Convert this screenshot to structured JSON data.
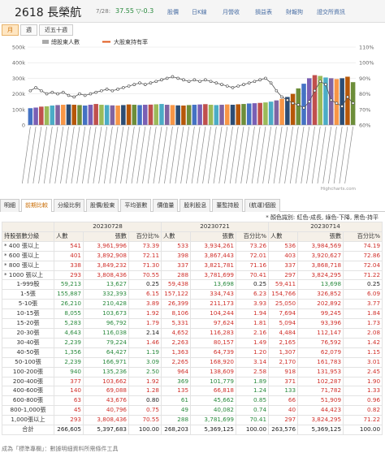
{
  "header": {
    "title": "2618 長榮航",
    "date": "7/28:",
    "price": "37.55 ▽-0.3",
    "nav": [
      "股價",
      "日K線",
      "月營收",
      "損益表",
      "財報狗",
      "證交所資訊"
    ]
  },
  "period_tabs": [
    "月",
    "週",
    "近五十週"
  ],
  "chart_data": {
    "type": "bar+line",
    "legend": [
      "總股東人數",
      "大股東持有率"
    ],
    "y_left": {
      "ticks": [
        "0",
        "100k",
        "200k",
        "300k",
        "400k",
        "500k"
      ],
      "min": 0,
      "max": 500000
    },
    "y_right": {
      "ticks": [
        "60%",
        "70%",
        "80%",
        "90%",
        "100%",
        "110%"
      ],
      "min": 60,
      "max": 110
    },
    "credit": "Highcharts.com",
    "holders_k": [
      108,
      112,
      118,
      120,
      125,
      128,
      130,
      132,
      130,
      128,
      125,
      130,
      135,
      130,
      128,
      126,
      125,
      128,
      132,
      130,
      128,
      130,
      131,
      133,
      135,
      130,
      128,
      126,
      125,
      128,
      130,
      132,
      134,
      130,
      128,
      130,
      132,
      130,
      133,
      135,
      138,
      140,
      142,
      145,
      150,
      158,
      168,
      180,
      200,
      235,
      265,
      300,
      320,
      315,
      305,
      300,
      295,
      300,
      310,
      275
    ],
    "top_holder_pct": [
      82,
      84,
      82,
      80,
      81,
      80,
      81,
      79,
      78,
      80,
      79,
      80,
      81,
      82,
      83,
      82,
      83,
      84,
      85,
      86,
      87,
      86,
      87,
      88,
      89,
      90,
      91,
      90,
      89,
      88,
      89,
      88,
      89,
      88,
      87,
      86,
      85,
      84,
      85,
      86,
      87,
      88,
      89,
      90,
      87,
      82,
      78,
      76,
      74,
      73,
      71,
      75,
      82,
      88,
      86,
      76,
      74,
      72,
      78,
      74
    ]
  },
  "section_tabs": [
    "明細",
    "前期比較",
    "分級比例",
    "股價/股東",
    "平均張數",
    "價值量",
    "股利股息",
    "董監持股",
    "(航運)個股"
  ],
  "color_note": "* 顏色識別: 紅色-成長, 綠色-下降, 黑色-持平",
  "table": {
    "col_label": "持股張數分級",
    "periods": [
      "20230728",
      "20230721",
      "20230714"
    ],
    "sub_headers": [
      "人數",
      "張數",
      "百分比%"
    ],
    "big_rows": [
      {
        "label": "* 400 張以上",
        "vals": [
          {
            "t": "541",
            "c": "red"
          },
          {
            "t": "3,961,996",
            "c": "red"
          },
          {
            "t": "73.39",
            "c": "red"
          },
          {
            "t": "533",
            "c": "red"
          },
          {
            "t": "3,934,261",
            "c": "red"
          },
          {
            "t": "73.26",
            "c": "red"
          },
          {
            "t": "536",
            "c": "red"
          },
          {
            "t": "3,984,569",
            "c": "red"
          },
          {
            "t": "74.19",
            "c": "red"
          }
        ]
      },
      {
        "label": "* 600 張以上",
        "vals": [
          {
            "t": "401",
            "c": "red"
          },
          {
            "t": "3,892,908",
            "c": "red"
          },
          {
            "t": "72.11",
            "c": "red"
          },
          {
            "t": "398",
            "c": "red"
          },
          {
            "t": "3,867,443",
            "c": "red"
          },
          {
            "t": "72.01",
            "c": "red"
          },
          {
            "t": "403",
            "c": "red"
          },
          {
            "t": "3,920,627",
            "c": "red"
          },
          {
            "t": "72.86",
            "c": "red"
          }
        ]
      },
      {
        "label": "* 800 張以上",
        "vals": [
          {
            "t": "338",
            "c": "red"
          },
          {
            "t": "3,849,232",
            "c": "red"
          },
          {
            "t": "71.30",
            "c": "red"
          },
          {
            "t": "337",
            "c": "red"
          },
          {
            "t": "3,821,781",
            "c": "red"
          },
          {
            "t": "71.16",
            "c": "red"
          },
          {
            "t": "337",
            "c": "red"
          },
          {
            "t": "3,868,718",
            "c": "red"
          },
          {
            "t": "72.04",
            "c": "red"
          }
        ]
      },
      {
        "label": "* 1000 張以上",
        "vals": [
          {
            "t": "293",
            "c": "red"
          },
          {
            "t": "3,808,436",
            "c": "red"
          },
          {
            "t": "70.55",
            "c": "red"
          },
          {
            "t": "288",
            "c": "red"
          },
          {
            "t": "3,781,699",
            "c": "red"
          },
          {
            "t": "70.41",
            "c": "red"
          },
          {
            "t": "297",
            "c": "red"
          },
          {
            "t": "3,824,295",
            "c": "red"
          },
          {
            "t": "71.22",
            "c": "red"
          }
        ]
      }
    ],
    "rows": [
      {
        "label": "1-999股",
        "vals": [
          {
            "t": "59,213",
            "c": "grn"
          },
          {
            "t": "13,627",
            "c": "grn"
          },
          {
            "t": "0.25",
            "c": "blk"
          },
          {
            "t": "59,438",
            "c": "red"
          },
          {
            "t": "13,698",
            "c": "grn"
          },
          {
            "t": "0.25",
            "c": "blk"
          },
          {
            "t": "59,411",
            "c": "red"
          },
          {
            "t": "13,698",
            "c": "grn"
          },
          {
            "t": "0.25",
            "c": "blk"
          }
        ]
      },
      {
        "label": "1-5張",
        "vals": [
          {
            "t": "155,887",
            "c": "grn"
          },
          {
            "t": "332,393",
            "c": "grn"
          },
          {
            "t": "6.15",
            "c": "red"
          },
          {
            "t": "157,122",
            "c": "red"
          },
          {
            "t": "334,743",
            "c": "red"
          },
          {
            "t": "6.23",
            "c": "red"
          },
          {
            "t": "154,766",
            "c": "red"
          },
          {
            "t": "326,852",
            "c": "red"
          },
          {
            "t": "6.09",
            "c": "red"
          }
        ]
      },
      {
        "label": "5-10張",
        "vals": [
          {
            "t": "26,210",
            "c": "grn"
          },
          {
            "t": "210,428",
            "c": "grn"
          },
          {
            "t": "3.89",
            "c": "red"
          },
          {
            "t": "26,399",
            "c": "red"
          },
          {
            "t": "211,173",
            "c": "red"
          },
          {
            "t": "3.93",
            "c": "red"
          },
          {
            "t": "25,050",
            "c": "red"
          },
          {
            "t": "202,892",
            "c": "red"
          },
          {
            "t": "3.77",
            "c": "red"
          }
        ]
      },
      {
        "label": "10-15張",
        "vals": [
          {
            "t": "8,055",
            "c": "grn"
          },
          {
            "t": "103,673",
            "c": "grn"
          },
          {
            "t": "1.92",
            "c": "red"
          },
          {
            "t": "8,106",
            "c": "red"
          },
          {
            "t": "104,244",
            "c": "red"
          },
          {
            "t": "1.94",
            "c": "red"
          },
          {
            "t": "7,694",
            "c": "red"
          },
          {
            "t": "99,245",
            "c": "red"
          },
          {
            "t": "1.84",
            "c": "red"
          }
        ]
      },
      {
        "label": "15-20張",
        "vals": [
          {
            "t": "5,283",
            "c": "grn"
          },
          {
            "t": "96,792",
            "c": "grn"
          },
          {
            "t": "1.79",
            "c": "red"
          },
          {
            "t": "5,331",
            "c": "red"
          },
          {
            "t": "97,624",
            "c": "red"
          },
          {
            "t": "1.81",
            "c": "red"
          },
          {
            "t": "5,094",
            "c": "red"
          },
          {
            "t": "93,396",
            "c": "red"
          },
          {
            "t": "1.73",
            "c": "red"
          }
        ]
      },
      {
        "label": "20-30張",
        "vals": [
          {
            "t": "4,643",
            "c": "grn"
          },
          {
            "t": "116,038",
            "c": "grn"
          },
          {
            "t": "2.14",
            "c": "blk"
          },
          {
            "t": "4,652",
            "c": "red"
          },
          {
            "t": "116,283",
            "c": "red"
          },
          {
            "t": "2.16",
            "c": "red"
          },
          {
            "t": "4,484",
            "c": "red"
          },
          {
            "t": "112,147",
            "c": "red"
          },
          {
            "t": "2.08",
            "c": "red"
          }
        ]
      },
      {
        "label": "30-40張",
        "vals": [
          {
            "t": "2,239",
            "c": "grn"
          },
          {
            "t": "79,224",
            "c": "grn"
          },
          {
            "t": "1.46",
            "c": "red"
          },
          {
            "t": "2,263",
            "c": "red"
          },
          {
            "t": "80,157",
            "c": "red"
          },
          {
            "t": "1.49",
            "c": "red"
          },
          {
            "t": "2,165",
            "c": "red"
          },
          {
            "t": "76,592",
            "c": "red"
          },
          {
            "t": "1.42",
            "c": "red"
          }
        ]
      },
      {
        "label": "40-50張",
        "vals": [
          {
            "t": "1,356",
            "c": "grn"
          },
          {
            "t": "64,427",
            "c": "grn"
          },
          {
            "t": "1.19",
            "c": "grn"
          },
          {
            "t": "1,363",
            "c": "red"
          },
          {
            "t": "64,739",
            "c": "red"
          },
          {
            "t": "1.20",
            "c": "red"
          },
          {
            "t": "1,307",
            "c": "red"
          },
          {
            "t": "62,079",
            "c": "red"
          },
          {
            "t": "1.15",
            "c": "red"
          }
        ]
      },
      {
        "label": "50-100張",
        "vals": [
          {
            "t": "2,239",
            "c": "grn"
          },
          {
            "t": "166,971",
            "c": "grn"
          },
          {
            "t": "3.09",
            "c": "grn"
          },
          {
            "t": "2,265",
            "c": "red"
          },
          {
            "t": "168,920",
            "c": "red"
          },
          {
            "t": "3.14",
            "c": "red"
          },
          {
            "t": "2,170",
            "c": "red"
          },
          {
            "t": "161,783",
            "c": "red"
          },
          {
            "t": "3.01",
            "c": "red"
          }
        ]
      },
      {
        "label": "100-200張",
        "vals": [
          {
            "t": "940",
            "c": "grn"
          },
          {
            "t": "135,236",
            "c": "grn"
          },
          {
            "t": "2.50",
            "c": "grn"
          },
          {
            "t": "964",
            "c": "red"
          },
          {
            "t": "138,609",
            "c": "red"
          },
          {
            "t": "2.58",
            "c": "red"
          },
          {
            "t": "918",
            "c": "red"
          },
          {
            "t": "131,953",
            "c": "red"
          },
          {
            "t": "2.45",
            "c": "red"
          }
        ]
      },
      {
        "label": "200-400張",
        "vals": [
          {
            "t": "377",
            "c": "red"
          },
          {
            "t": "103,662",
            "c": "red"
          },
          {
            "t": "1.92",
            "c": "red"
          },
          {
            "t": "369",
            "c": "grn"
          },
          {
            "t": "101,779",
            "c": "grn"
          },
          {
            "t": "1.89",
            "c": "grn"
          },
          {
            "t": "371",
            "c": "red"
          },
          {
            "t": "102,287",
            "c": "red"
          },
          {
            "t": "1.90",
            "c": "red"
          }
        ]
      },
      {
        "label": "400-600張",
        "vals": [
          {
            "t": "140",
            "c": "red"
          },
          {
            "t": "69,088",
            "c": "red"
          },
          {
            "t": "1.28",
            "c": "red"
          },
          {
            "t": "135",
            "c": "red"
          },
          {
            "t": "66,818",
            "c": "red"
          },
          {
            "t": "1.24",
            "c": "grn"
          },
          {
            "t": "133",
            "c": "grn"
          },
          {
            "t": "71,782",
            "c": "red"
          },
          {
            "t": "1.33",
            "c": "red"
          }
        ]
      },
      {
        "label": "600-800張",
        "vals": [
          {
            "t": "63",
            "c": "red"
          },
          {
            "t": "43,676",
            "c": "red"
          },
          {
            "t": "0.80",
            "c": "blk"
          },
          {
            "t": "61",
            "c": "grn"
          },
          {
            "t": "45,662",
            "c": "grn"
          },
          {
            "t": "0.85",
            "c": "grn"
          },
          {
            "t": "66",
            "c": "red"
          },
          {
            "t": "51,909",
            "c": "red"
          },
          {
            "t": "0.96",
            "c": "red"
          }
        ]
      },
      {
        "label": "800-1,000張",
        "vals": [
          {
            "t": "45",
            "c": "red"
          },
          {
            "t": "40,796",
            "c": "red"
          },
          {
            "t": "0.75",
            "c": "red"
          },
          {
            "t": "49",
            "c": "grn"
          },
          {
            "t": "40,082",
            "c": "grn"
          },
          {
            "t": "0.74",
            "c": "grn"
          },
          {
            "t": "40",
            "c": "red"
          },
          {
            "t": "44,423",
            "c": "red"
          },
          {
            "t": "0.82",
            "c": "red"
          }
        ]
      },
      {
        "label": "1,000張以上",
        "vals": [
          {
            "t": "293",
            "c": "red"
          },
          {
            "t": "3,808,436",
            "c": "red"
          },
          {
            "t": "70.55",
            "c": "red"
          },
          {
            "t": "288",
            "c": "grn"
          },
          {
            "t": "3,781,699",
            "c": "grn"
          },
          {
            "t": "70.41",
            "c": "grn"
          },
          {
            "t": "297",
            "c": "red"
          },
          {
            "t": "3,824,295",
            "c": "red"
          },
          {
            "t": "71.22",
            "c": "red"
          }
        ]
      },
      {
        "label": "合計",
        "vals": [
          {
            "t": "266,605",
            "c": "blk"
          },
          {
            "t": "5,397,683",
            "c": "blk"
          },
          {
            "t": "100.00",
            "c": "blk"
          },
          {
            "t": "268,203",
            "c": "blk"
          },
          {
            "t": "5,369,125",
            "c": "blk"
          },
          {
            "t": "100.00",
            "c": "blk"
          },
          {
            "t": "263,576",
            "c": "blk"
          },
          {
            "t": "5,369,125",
            "c": "blk"
          },
          {
            "t": "100.00",
            "c": "blk"
          }
        ]
      }
    ]
  },
  "footer": "成為「標準專欄」：數據明細資料所需條件工具"
}
